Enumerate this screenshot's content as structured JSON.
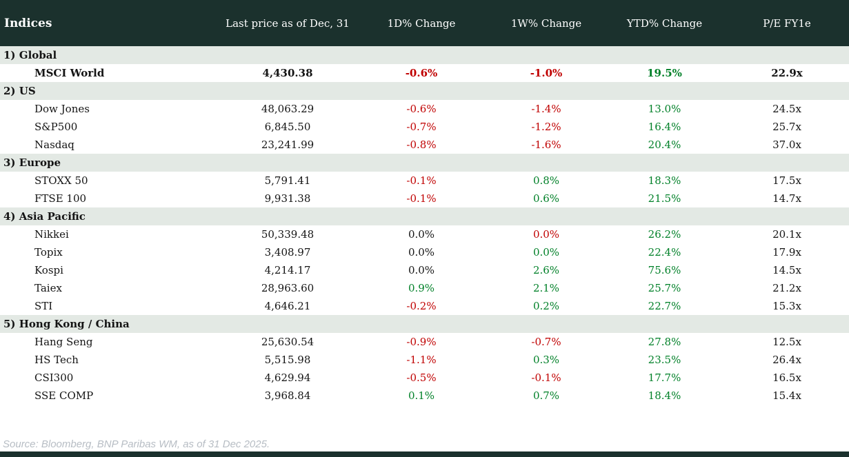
{
  "colors": {
    "header_bg": "#1b312d",
    "section_bg": "#e3e9e4",
    "red": "#c00000",
    "green": "#008028",
    "text": "#141414",
    "footer_gray": "#b7bdc4"
  },
  "footer": {
    "source": "Source: Bloomberg, BNP Paribas WM, as of 31 Dec 2025."
  },
  "chart_data": {
    "type": "table",
    "title": "Indices",
    "columns": [
      "Indices",
      "Last price as of Dec, 31",
      "1D% Change",
      "1W% Change",
      "YTD% Change",
      "P/E FY1e"
    ],
    "sections": [
      {
        "label": "1) Global",
        "rows": [
          {
            "name": "MSCI World",
            "price": "4,430.38",
            "d1": "-0.6%",
            "d1_color": "red",
            "w1": "-1.0%",
            "w1_color": "red",
            "ytd": "19.5%",
            "ytd_color": "green",
            "pe": "22.9x",
            "bold": true
          }
        ]
      },
      {
        "label": "2) US",
        "rows": [
          {
            "name": "Dow Jones",
            "price": "48,063.29",
            "d1": "-0.6%",
            "d1_color": "red",
            "w1": "-1.4%",
            "w1_color": "red",
            "ytd": "13.0%",
            "ytd_color": "green",
            "pe": "24.5x",
            "bold": false
          },
          {
            "name": "S&P500",
            "price": "6,845.50",
            "d1": "-0.7%",
            "d1_color": "red",
            "w1": "-1.2%",
            "w1_color": "red",
            "ytd": "16.4%",
            "ytd_color": "green",
            "pe": "25.7x",
            "bold": false
          },
          {
            "name": "Nasdaq",
            "price": "23,241.99",
            "d1": "-0.8%",
            "d1_color": "red",
            "w1": "-1.6%",
            "w1_color": "red",
            "ytd": "20.4%",
            "ytd_color": "green",
            "pe": "37.0x",
            "bold": false
          }
        ]
      },
      {
        "label": "3) Europe",
        "rows": [
          {
            "name": "STOXX 50",
            "price": "5,791.41",
            "d1": "-0.1%",
            "d1_color": "red",
            "w1": "0.8%",
            "w1_color": "green",
            "ytd": "18.3%",
            "ytd_color": "green",
            "pe": "17.5x",
            "bold": false
          },
          {
            "name": "FTSE 100",
            "price": "9,931.38",
            "d1": "-0.1%",
            "d1_color": "red",
            "w1": "0.6%",
            "w1_color": "green",
            "ytd": "21.5%",
            "ytd_color": "green",
            "pe": "14.7x",
            "bold": false
          }
        ]
      },
      {
        "label": "4) Asia Pacific",
        "rows": [
          {
            "name": "Nikkei",
            "price": "50,339.48",
            "d1": "0.0%",
            "d1_color": "text",
            "w1": "0.0%",
            "w1_color": "red",
            "ytd": "26.2%",
            "ytd_color": "green",
            "pe": "20.1x",
            "bold": false
          },
          {
            "name": "Topix",
            "price": "3,408.97",
            "d1": "0.0%",
            "d1_color": "text",
            "w1": "0.0%",
            "w1_color": "green",
            "ytd": "22.4%",
            "ytd_color": "green",
            "pe": "17.9x",
            "bold": false
          },
          {
            "name": "Kospi",
            "price": "4,214.17",
            "d1": "0.0%",
            "d1_color": "text",
            "w1": "2.6%",
            "w1_color": "green",
            "ytd": "75.6%",
            "ytd_color": "green",
            "pe": "14.5x",
            "bold": false
          },
          {
            "name": "Taiex",
            "price": "28,963.60",
            "d1": "0.9%",
            "d1_color": "green",
            "w1": "2.1%",
            "w1_color": "green",
            "ytd": "25.7%",
            "ytd_color": "green",
            "pe": "21.2x",
            "bold": false
          },
          {
            "name": "STI",
            "price": "4,646.21",
            "d1": "-0.2%",
            "d1_color": "red",
            "w1": "0.2%",
            "w1_color": "green",
            "ytd": "22.7%",
            "ytd_color": "green",
            "pe": "15.3x",
            "bold": false
          }
        ]
      },
      {
        "label": "5) Hong Kong / China",
        "rows": [
          {
            "name": "Hang Seng",
            "price": "25,630.54",
            "d1": "-0.9%",
            "d1_color": "red",
            "w1": "-0.7%",
            "w1_color": "red",
            "ytd": "27.8%",
            "ytd_color": "green",
            "pe": "12.5x",
            "bold": false
          },
          {
            "name": "HS Tech",
            "price": "5,515.98",
            "d1": "-1.1%",
            "d1_color": "red",
            "w1": "0.3%",
            "w1_color": "green",
            "ytd": "23.5%",
            "ytd_color": "green",
            "pe": "26.4x",
            "bold": false
          },
          {
            "name": "CSI300",
            "price": "4,629.94",
            "d1": "-0.5%",
            "d1_color": "red",
            "w1": "-0.1%",
            "w1_color": "red",
            "ytd": "17.7%",
            "ytd_color": "green",
            "pe": "16.5x",
            "bold": false
          },
          {
            "name": "SSE COMP",
            "price": "3,968.84",
            "d1": "0.1%",
            "d1_color": "green",
            "w1": "0.7%",
            "w1_color": "green",
            "ytd": "18.4%",
            "ytd_color": "green",
            "pe": "15.4x",
            "bold": false
          }
        ]
      }
    ]
  }
}
